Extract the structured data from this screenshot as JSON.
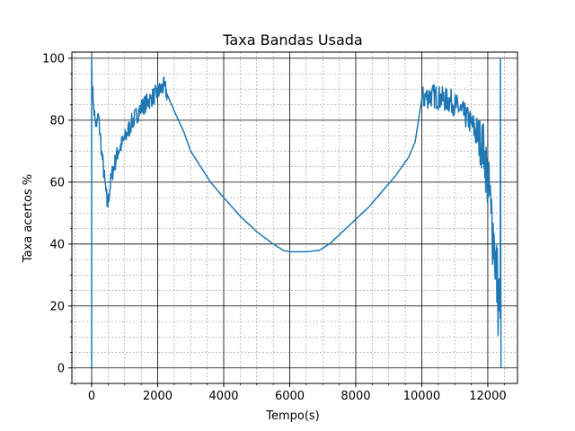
{
  "chart_data": {
    "type": "line",
    "title": "Taxa Bandas Usada",
    "xlabel": "Tempo(s)",
    "ylabel": "Taxa acertos %",
    "xlim": [
      -600,
      12900
    ],
    "ylim": [
      -5,
      102
    ],
    "x_ticks": [
      0,
      2000,
      4000,
      6000,
      8000,
      10000,
      12000
    ],
    "y_ticks": [
      0,
      20,
      40,
      60,
      80,
      100
    ],
    "x_minor_step": 500,
    "y_minor_step": 5,
    "grid": {
      "major": true,
      "minor": true
    },
    "colors": {
      "line": "#1f77b4",
      "grid_major": "#000000",
      "grid_minor": "#808080"
    },
    "series": [
      {
        "x": [
          0,
          0,
          20,
          60,
          100,
          150,
          200,
          300,
          400,
          480,
          600,
          800,
          1000,
          1200,
          1500,
          1800,
          2000,
          2200,
          2300,
          2500,
          2800,
          3000,
          3300,
          3600,
          4000,
          4500,
          5000,
          5500,
          5800,
          6000,
          6500,
          6900,
          7200,
          7600,
          8000,
          8400,
          8800,
          9200,
          9600,
          9800,
          10000,
          10300,
          10600,
          10900,
          11200,
          11500,
          11700,
          11900,
          12000,
          12100,
          12200,
          12300,
          12380,
          12380,
          12400
        ],
        "y": [
          0,
          100,
          90,
          85,
          80,
          78,
          82,
          70,
          60,
          52,
          62,
          70,
          74,
          79,
          84,
          87,
          89,
          91,
          88,
          83,
          76,
          70,
          65,
          60,
          55,
          49,
          44,
          40,
          38,
          37.5,
          37.5,
          38,
          40,
          44,
          48,
          52,
          57,
          62,
          68,
          73,
          87,
          88,
          87,
          86,
          83,
          79,
          75,
          70,
          60,
          50,
          40,
          25,
          16,
          100,
          0
        ],
        "noise_ranges": [
          [
            0,
            2300,
            3
          ],
          [
            10000,
            12380,
            4
          ]
        ]
      }
    ]
  }
}
